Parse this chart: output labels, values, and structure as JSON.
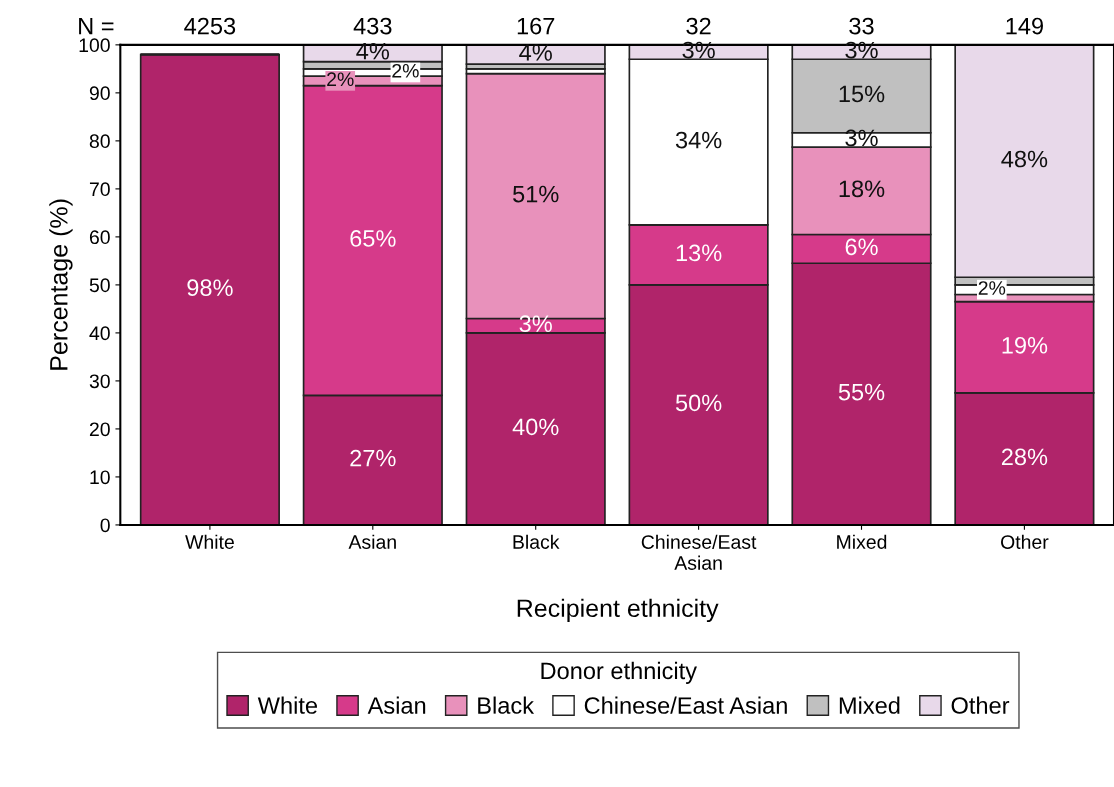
{
  "chart_data": {
    "type": "bar",
    "stacked": true,
    "xlabel": "Recipient ethnicity",
    "ylabel": "Percentage (%)",
    "legend_title": "Donor ethnicity",
    "legend": "bottom",
    "grid": false,
    "categories": [
      "White",
      "Asian",
      "Black",
      "Chinese/East Asian",
      "Mixed",
      "Other"
    ],
    "ylim": [
      0,
      100
    ],
    "yticks": [
      0,
      10,
      20,
      30,
      40,
      50,
      60,
      70,
      80,
      90,
      100
    ],
    "annotations": [
      "N =",
      "4253",
      "433",
      "167",
      "32",
      "33",
      "149"
    ],
    "series": [
      {
        "name": "White",
        "color": "#b0246a",
        "values": [
          98,
          27,
          40,
          50,
          54.5,
          27.5
        ],
        "value_labels": [
          "98%",
          "27%",
          "40%",
          "50%",
          "55%",
          "28%"
        ]
      },
      {
        "name": "Asian",
        "color": "#d63a8a",
        "values": [
          null,
          64.5,
          3,
          12.5,
          6,
          19
        ],
        "value_labels": [
          null,
          "65%",
          "3%",
          "13%",
          "6%",
          "19%"
        ]
      },
      {
        "name": "Black",
        "color": "#e891bb",
        "values": [
          null,
          2,
          51,
          0,
          18.2,
          1.5
        ],
        "value_labels": [
          null,
          "2%",
          "51%",
          null,
          "18%",
          null
        ]
      },
      {
        "name": "Chinese/East Asian",
        "color": "#ffffff",
        "values": [
          null,
          1.5,
          1,
          34.5,
          3,
          2
        ],
        "value_labels": [
          null,
          "2%",
          null,
          "34%",
          "3%",
          "2%"
        ]
      },
      {
        "name": "Mixed",
        "color": "#c0c0c0",
        "values": [
          null,
          1.5,
          1,
          0,
          15.3,
          1.6
        ],
        "value_labels": [
          null,
          null,
          null,
          null,
          "15%",
          null
        ]
      },
      {
        "name": "Other",
        "color": "#e8d9ea",
        "values": [
          null,
          3.5,
          4,
          3,
          3,
          48.4
        ],
        "value_labels": [
          null,
          "4%",
          "4%",
          "3%",
          "3%",
          "48%"
        ]
      }
    ]
  }
}
